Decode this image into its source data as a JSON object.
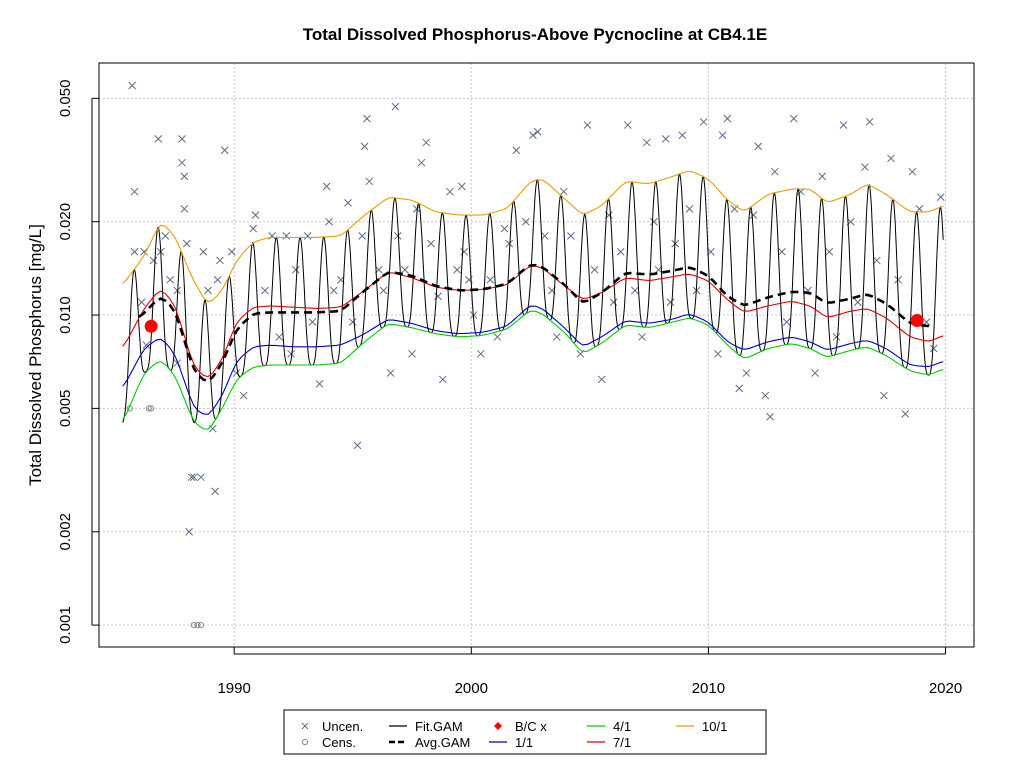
{
  "chart_data": {
    "type": "line",
    "title": "Total Dissolved Phosphorus-Above Pycnocline at CB4.1E",
    "xlabel": "",
    "ylabel": "Total Dissolved Phosphorus [mg/L]",
    "x_ticks": [
      1990,
      2000,
      2010,
      2020
    ],
    "y_ticks": [
      "0.001",
      "0.002",
      "0.005",
      "0.010",
      "0.020",
      "0.050"
    ],
    "xlim": [
      1984.3,
      2021.2
    ],
    "ylim": [
      0.00085,
      0.065
    ],
    "y_scale": "log",
    "grid": true,
    "legend_position": "bottom",
    "legend": [
      {
        "label": "Uncen.",
        "marker": "x",
        "color": "#5d6b8a"
      },
      {
        "label": "Cens.",
        "marker": "o",
        "color": "#888888"
      },
      {
        "label": "Fit.GAM",
        "line": "solid",
        "color": "#000000"
      },
      {
        "label": "Avg.GAM",
        "line": "dashed",
        "color": "#000000"
      },
      {
        "label": "B/C x",
        "marker": "diamond",
        "color": "#ff0000"
      },
      {
        "label": "1/1",
        "line": "solid",
        "color": "#0000bb"
      },
      {
        "label": "4/1",
        "line": "solid",
        "color": "#00cc00"
      },
      {
        "label": "7/1",
        "line": "solid",
        "color": "#dd0000"
      },
      {
        "label": "10/1",
        "line": "solid",
        "color": "#e69f00"
      }
    ],
    "series": [
      {
        "name": "10/1",
        "color": "#e69f00",
        "x": [
          1985.3,
          1986.2,
          1986.9,
          1987.5,
          1988.3,
          1988.9,
          1989.5,
          1990.1,
          1990.8,
          1991.5,
          1992.5,
          1993.5,
          1994.5,
          1995.5,
          1996.5,
          1997.5,
          1998.5,
          1999.5,
          2000.5,
          2001.5,
          2002.5,
          2003.0,
          2004.0,
          2004.7,
          2005.5,
          2006.5,
          2007.5,
          2008.5,
          2009.2,
          2010.0,
          2010.8,
          2011.5,
          2012.5,
          2013.5,
          2014.3,
          2015.0,
          2016.0,
          2016.7,
          2017.5,
          2018.5,
          2019.3,
          2019.9
        ],
        "values": [
          0.0125,
          0.0155,
          0.02,
          0.018,
          0.0128,
          0.0108,
          0.012,
          0.015,
          0.0172,
          0.0178,
          0.0178,
          0.0178,
          0.018,
          0.021,
          0.024,
          0.0235,
          0.0215,
          0.021,
          0.021,
          0.022,
          0.027,
          0.0275,
          0.0235,
          0.021,
          0.0225,
          0.027,
          0.0265,
          0.028,
          0.0293,
          0.0275,
          0.0235,
          0.0215,
          0.0245,
          0.0255,
          0.0255,
          0.023,
          0.0245,
          0.0265,
          0.0245,
          0.0215,
          0.0215,
          0.0225
        ]
      },
      {
        "name": "7/1",
        "color": "#dd0000",
        "x": [
          1985.3,
          1986.2,
          1986.9,
          1987.5,
          1988.3,
          1988.9,
          1989.5,
          1990.1,
          1990.8,
          1991.5,
          1992.5,
          1993.5,
          1994.5,
          1995.5,
          1996.5,
          1997.5,
          1998.5,
          1999.5,
          2000.5,
          2001.5,
          2002.5,
          2003.0,
          2004.0,
          2004.7,
          2005.5,
          2006.5,
          2007.5,
          2008.5,
          2009.2,
          2010.0,
          2010.8,
          2011.5,
          2012.5,
          2013.5,
          2014.3,
          2015.0,
          2016.0,
          2016.7,
          2017.5,
          2018.5,
          2019.3,
          2019.9
        ],
        "values": [
          0.0078,
          0.0105,
          0.0122,
          0.0108,
          0.0068,
          0.0062,
          0.0072,
          0.0095,
          0.0106,
          0.0107,
          0.0106,
          0.0105,
          0.0106,
          0.012,
          0.0138,
          0.0132,
          0.0123,
          0.012,
          0.0121,
          0.0125,
          0.0145,
          0.0142,
          0.0123,
          0.0112,
          0.0118,
          0.0132,
          0.0129,
          0.0133,
          0.0136,
          0.0129,
          0.0112,
          0.0102,
          0.0107,
          0.0111,
          0.0107,
          0.0098,
          0.0103,
          0.0105,
          0.0098,
          0.0085,
          0.0082,
          0.0086
        ]
      },
      {
        "name": "1/1",
        "color": "#0000bb",
        "x": [
          1985.3,
          1986.2,
          1986.9,
          1987.5,
          1988.3,
          1988.9,
          1989.5,
          1990.1,
          1990.8,
          1991.5,
          1992.5,
          1993.5,
          1994.5,
          1995.5,
          1996.5,
          1997.5,
          1998.5,
          1999.5,
          2000.5,
          2001.5,
          2002.5,
          2003.0,
          2004.0,
          2004.7,
          2005.5,
          2006.5,
          2007.5,
          2008.5,
          2009.2,
          2010.0,
          2010.8,
          2011.5,
          2012.5,
          2013.5,
          2014.3,
          2015.0,
          2016.0,
          2016.7,
          2017.5,
          2018.5,
          2019.3,
          2019.9
        ],
        "values": [
          0.0058,
          0.0078,
          0.0085,
          0.0075,
          0.005,
          0.0047,
          0.0055,
          0.0071,
          0.0079,
          0.008,
          0.0079,
          0.0079,
          0.008,
          0.0087,
          0.0097,
          0.0094,
          0.0089,
          0.0087,
          0.0088,
          0.0092,
          0.0108,
          0.0105,
          0.009,
          0.0079,
          0.0085,
          0.0096,
          0.0094,
          0.0097,
          0.0101,
          0.0095,
          0.0082,
          0.0077,
          0.0082,
          0.0085,
          0.0082,
          0.0077,
          0.0081,
          0.0083,
          0.0078,
          0.0069,
          0.0068,
          0.0071
        ]
      },
      {
        "name": "4/1",
        "color": "#00cc00",
        "x": [
          1985.3,
          1986.2,
          1986.9,
          1987.5,
          1988.3,
          1988.9,
          1989.5,
          1990.1,
          1990.8,
          1991.5,
          1992.5,
          1993.5,
          1994.5,
          1995.5,
          1996.5,
          1997.5,
          1998.5,
          1999.5,
          2000.5,
          2001.5,
          2002.5,
          2003.0,
          2004.0,
          2004.7,
          2005.5,
          2006.5,
          2007.5,
          2008.5,
          2009.2,
          2010.0,
          2010.8,
          2011.5,
          2012.5,
          2013.5,
          2014.3,
          2015.0,
          2016.0,
          2016.7,
          2017.5,
          2018.5,
          2019.3,
          2019.9
        ],
        "values": [
          0.0045,
          0.0065,
          0.0072,
          0.0064,
          0.0045,
          0.0042,
          0.005,
          0.0062,
          0.0068,
          0.0069,
          0.0069,
          0.0069,
          0.007,
          0.0082,
          0.0094,
          0.0091,
          0.0087,
          0.0085,
          0.0086,
          0.009,
          0.0104,
          0.0101,
          0.0087,
          0.0075,
          0.0081,
          0.0093,
          0.0091,
          0.0095,
          0.0098,
          0.0093,
          0.008,
          0.0072,
          0.0078,
          0.0081,
          0.0078,
          0.0073,
          0.0077,
          0.0079,
          0.0074,
          0.0066,
          0.0064,
          0.0067
        ]
      },
      {
        "name": "Avg.GAM",
        "color": "#000000",
        "dash": true,
        "x": [
          1986.0,
          1986.9,
          1987.5,
          1988.3,
          1988.9,
          1989.5,
          1990.1,
          1990.8,
          1991.5,
          1992.5,
          1993.5,
          1994.5,
          1995.5,
          1996.5,
          1997.5,
          1998.5,
          1999.5,
          2000.5,
          2001.5,
          2002.5,
          2003.0,
          2004.0,
          2004.7,
          2005.5,
          2006.5,
          2007.5,
          2008.5,
          2009.2,
          2010.0,
          2010.8,
          2011.5,
          2012.5,
          2013.5,
          2014.3,
          2015.0,
          2016.0,
          2016.7,
          2017.5,
          2018.5,
          2019.3
        ],
        "values": [
          0.0098,
          0.0115,
          0.0104,
          0.0066,
          0.006,
          0.007,
          0.009,
          0.0101,
          0.0102,
          0.0102,
          0.0102,
          0.0103,
          0.012,
          0.0138,
          0.0134,
          0.0124,
          0.012,
          0.0121,
          0.0126,
          0.0146,
          0.0143,
          0.0124,
          0.0109,
          0.0118,
          0.0137,
          0.0135,
          0.0139,
          0.0143,
          0.0134,
          0.0115,
          0.0107,
          0.0114,
          0.0119,
          0.0118,
          0.0109,
          0.0113,
          0.0117,
          0.0109,
          0.0094,
          0.0092
        ]
      }
    ],
    "fit_gam": {
      "name": "Fit.GAM",
      "color": "#000000",
      "peaks_follow": "10/1",
      "troughs_follow": "4/1",
      "peak_phase": 0.78,
      "trough_phase": 0.3,
      "x_start": 1985.3,
      "x_end": 2019.9
    },
    "bc_points": [
      {
        "x": 1986.5,
        "value": 0.0092,
        "color": "#ff0000"
      },
      {
        "x": 2018.8,
        "value": 0.0096,
        "color": "#ff0000"
      }
    ],
    "censored": [
      {
        "x": 1986.4,
        "value": 0.005
      },
      {
        "x": 1986.5,
        "value": 0.005
      },
      {
        "x": 1985.6,
        "value": 0.005
      },
      {
        "x": 1988.3,
        "value": 0.001
      },
      {
        "x": 1988.45,
        "value": 0.001
      },
      {
        "x": 1988.6,
        "value": 0.001
      }
    ],
    "uncensored": [
      [
        1985.7,
        0.055
      ],
      [
        1985.8,
        0.025
      ],
      [
        1985.8,
        0.016
      ],
      [
        1986.2,
        0.016
      ],
      [
        1986.1,
        0.011
      ],
      [
        1986.3,
        0.008
      ],
      [
        1986.8,
        0.037
      ],
      [
        1986.6,
        0.015
      ],
      [
        1986.9,
        0.016
      ],
      [
        1987.1,
        0.018
      ],
      [
        1987.3,
        0.013
      ],
      [
        1987.6,
        0.012
      ],
      [
        1987.6,
        0.007
      ],
      [
        1987.8,
        0.037
      ],
      [
        1987.8,
        0.031
      ],
      [
        1987.9,
        0.028
      ],
      [
        1987.9,
        0.022
      ],
      [
        1988.0,
        0.017
      ],
      [
        1988.1,
        0.002
      ],
      [
        1988.2,
        0.003
      ],
      [
        1988.3,
        0.003
      ],
      [
        1988.6,
        0.003
      ],
      [
        1988.7,
        0.016
      ],
      [
        1988.9,
        0.012
      ],
      [
        1989.1,
        0.0043
      ],
      [
        1989.2,
        0.0027
      ],
      [
        1989.3,
        0.013
      ],
      [
        1989.4,
        0.015
      ],
      [
        1989.6,
        0.034
      ],
      [
        1989.9,
        0.016
      ],
      [
        1990.1,
        0.0065
      ],
      [
        1990.4,
        0.0055
      ],
      [
        1990.8,
        0.019
      ],
      [
        1990.9,
        0.021
      ],
      [
        1991.3,
        0.012
      ],
      [
        1991.6,
        0.018
      ],
      [
        1991.9,
        0.0085
      ],
      [
        1992.2,
        0.018
      ],
      [
        1992.4,
        0.0075
      ],
      [
        1992.6,
        0.014
      ],
      [
        1993.1,
        0.018
      ],
      [
        1993.3,
        0.0095
      ],
      [
        1993.6,
        0.006
      ],
      [
        1993.9,
        0.026
      ],
      [
        1994.0,
        0.02
      ],
      [
        1994.2,
        0.012
      ],
      [
        1994.5,
        0.013
      ],
      [
        1994.8,
        0.023
      ],
      [
        1995.0,
        0.0095
      ],
      [
        1995.2,
        0.0038
      ],
      [
        1995.4,
        0.018
      ],
      [
        1995.5,
        0.035
      ],
      [
        1995.6,
        0.043
      ],
      [
        1995.7,
        0.027
      ],
      [
        1996.1,
        0.014
      ],
      [
        1996.3,
        0.012
      ],
      [
        1996.6,
        0.0065
      ],
      [
        1996.8,
        0.047
      ],
      [
        1996.9,
        0.018
      ],
      [
        1997.2,
        0.014
      ],
      [
        1997.5,
        0.0075
      ],
      [
        1997.7,
        0.022
      ],
      [
        1997.9,
        0.031
      ],
      [
        1998.1,
        0.036
      ],
      [
        1998.3,
        0.017
      ],
      [
        1998.6,
        0.0115
      ],
      [
        1998.8,
        0.0062
      ],
      [
        1999.1,
        0.025
      ],
      [
        1999.4,
        0.014
      ],
      [
        1999.6,
        0.026
      ],
      [
        1999.7,
        0.016
      ],
      [
        1999.9,
        0.013
      ],
      [
        2000.1,
        0.01
      ],
      [
        2000.4,
        0.0075
      ],
      [
        2000.8,
        0.013
      ],
      [
        2001.1,
        0.0085
      ],
      [
        2001.4,
        0.019
      ],
      [
        2001.6,
        0.017
      ],
      [
        2001.9,
        0.034
      ],
      [
        2002.3,
        0.02
      ],
      [
        2002.6,
        0.038
      ],
      [
        2002.8,
        0.039
      ],
      [
        2003.1,
        0.018
      ],
      [
        2003.4,
        0.012
      ],
      [
        2003.6,
        0.0085
      ],
      [
        2003.9,
        0.025
      ],
      [
        2004.2,
        0.018
      ],
      [
        2004.6,
        0.0075
      ],
      [
        2004.9,
        0.041
      ],
      [
        2005.2,
        0.014
      ],
      [
        2005.5,
        0.0062
      ],
      [
        2005.8,
        0.021
      ],
      [
        2006.0,
        0.011
      ],
      [
        2006.3,
        0.016
      ],
      [
        2006.6,
        0.041
      ],
      [
        2006.9,
        0.012
      ],
      [
        2007.2,
        0.0085
      ],
      [
        2007.4,
        0.036
      ],
      [
        2007.7,
        0.02
      ],
      [
        2007.9,
        0.014
      ],
      [
        2008.2,
        0.037
      ],
      [
        2008.4,
        0.011
      ],
      [
        2008.6,
        0.017
      ],
      [
        2008.9,
        0.038
      ],
      [
        2009.2,
        0.022
      ],
      [
        2009.5,
        0.012
      ],
      [
        2009.8,
        0.042
      ],
      [
        2010.1,
        0.016
      ],
      [
        2010.4,
        0.0075
      ],
      [
        2010.6,
        0.038
      ],
      [
        2010.8,
        0.043
      ],
      [
        2011.1,
        0.022
      ],
      [
        2011.3,
        0.0058
      ],
      [
        2011.6,
        0.0065
      ],
      [
        2011.9,
        0.021
      ],
      [
        2012.1,
        0.035
      ],
      [
        2012.4,
        0.0055
      ],
      [
        2012.6,
        0.0047
      ],
      [
        2012.8,
        0.029
      ],
      [
        2013.1,
        0.016
      ],
      [
        2013.3,
        0.0095
      ],
      [
        2013.6,
        0.043
      ],
      [
        2013.9,
        0.025
      ],
      [
        2014.2,
        0.012
      ],
      [
        2014.5,
        0.0065
      ],
      [
        2014.8,
        0.028
      ],
      [
        2015.1,
        0.016
      ],
      [
        2015.4,
        0.0085
      ],
      [
        2015.7,
        0.041
      ],
      [
        2016.0,
        0.02
      ],
      [
        2016.3,
        0.011
      ],
      [
        2016.6,
        0.03
      ],
      [
        2016.8,
        0.042
      ],
      [
        2017.1,
        0.015
      ],
      [
        2017.4,
        0.0055
      ],
      [
        2017.7,
        0.032
      ],
      [
        2018.0,
        0.013
      ],
      [
        2018.3,
        0.0048
      ],
      [
        2018.6,
        0.029
      ],
      [
        2018.9,
        0.022
      ],
      [
        2019.2,
        0.0095
      ],
      [
        2019.5,
        0.0078
      ],
      [
        2019.8,
        0.024
      ]
    ]
  }
}
